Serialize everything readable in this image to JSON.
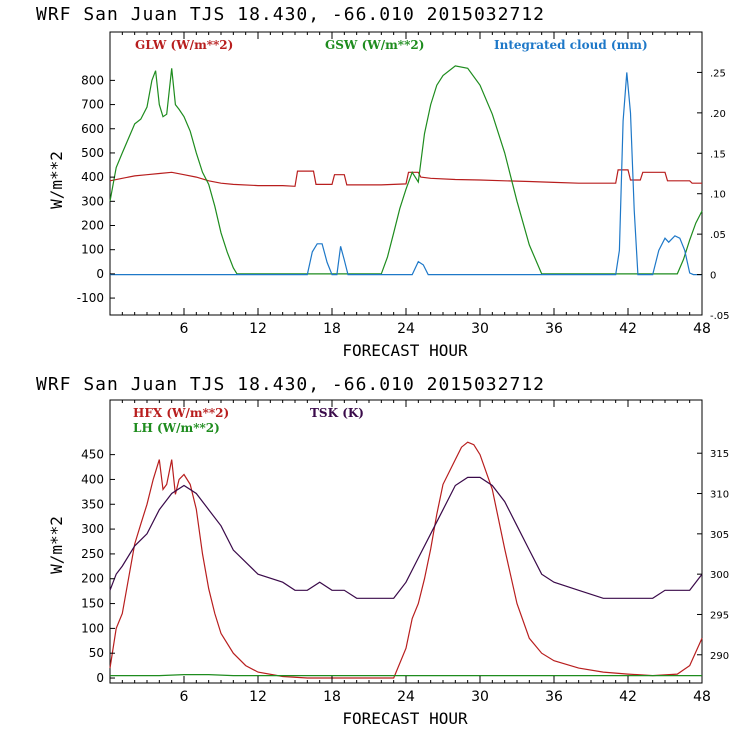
{
  "chart_data": [
    {
      "type": "line",
      "title": "WRF  San Juan TJS  18.430, -66.010  2015032712",
      "xlabel": "FORECAST HOUR",
      "ylabel": "W/m**2",
      "xlim": [
        0,
        48
      ],
      "ylim": [
        -170,
        1000
      ],
      "y2lim": [
        -0.05,
        0.3
      ],
      "x_ticks": [
        6,
        12,
        18,
        24,
        30,
        36,
        42,
        48
      ],
      "y_ticks": [
        -100,
        0,
        100,
        200,
        300,
        400,
        500,
        600,
        700,
        800
      ],
      "y2_ticks": [
        -0.05,
        0,
        0.05,
        0.1,
        0.15,
        0.2,
        0.25
      ],
      "y2_tick_labels": [
        "-.05",
        "0",
        ".05",
        ".10",
        ".15",
        ".20",
        ".25"
      ],
      "series": [
        {
          "name": "GLW (W/m**2)",
          "color": "#b81e1e",
          "axis": "left",
          "x": [
            0,
            1,
            2,
            3,
            4,
            5,
            6,
            7,
            8,
            9,
            10,
            12,
            14,
            15,
            15.2,
            16.5,
            16.7,
            18,
            18.2,
            19,
            19.2,
            20,
            22,
            24,
            24.2,
            25,
            25.2,
            26,
            28,
            30,
            32,
            34,
            36,
            38,
            40,
            41,
            41.2,
            42,
            42.2,
            43,
            43.2,
            45,
            45.2,
            47,
            47.2,
            48
          ],
          "y": [
            385,
            395,
            405,
            410,
            415,
            420,
            410,
            400,
            385,
            375,
            370,
            365,
            365,
            362,
            425,
            425,
            370,
            370,
            410,
            410,
            368,
            368,
            368,
            372,
            420,
            420,
            400,
            395,
            390,
            388,
            385,
            382,
            378,
            375,
            375,
            375,
            430,
            430,
            388,
            388,
            420,
            420,
            385,
            385,
            375,
            375
          ]
        },
        {
          "name": "GSW (W/m**2)",
          "color": "#1e8c1e",
          "axis": "left",
          "x": [
            0,
            0.5,
            1,
            1.5,
            2,
            2.5,
            3,
            3.4,
            3.7,
            4,
            4.3,
            4.6,
            5,
            5.3,
            5.6,
            6,
            6.5,
            7,
            7.5,
            8,
            8.5,
            9,
            9.5,
            10,
            10.3,
            11,
            22,
            22.5,
            23,
            23.5,
            24,
            24.5,
            25,
            25.5,
            26,
            26.5,
            27,
            28,
            29,
            30,
            31,
            32,
            33,
            34,
            35,
            36,
            46,
            46.5,
            47,
            47.5,
            48
          ],
          "y": [
            300,
            440,
            500,
            560,
            620,
            640,
            690,
            800,
            840,
            700,
            650,
            660,
            850,
            700,
            680,
            650,
            590,
            500,
            420,
            370,
            280,
            170,
            90,
            25,
            0,
            0,
            0,
            70,
            170,
            270,
            350,
            420,
            380,
            580,
            700,
            780,
            820,
            860,
            850,
            780,
            660,
            500,
            300,
            120,
            0,
            0,
            0,
            60,
            140,
            210,
            260
          ]
        },
        {
          "name": "Integrated cloud (mm)",
          "color": "#1e78c8",
          "axis": "right",
          "x": [
            0,
            16,
            16.4,
            16.8,
            17.2,
            17.6,
            18,
            18.4,
            18.7,
            19,
            19.3,
            20,
            24.5,
            25,
            25.4,
            25.8,
            26,
            41,
            41.3,
            41.6,
            41.9,
            42.2,
            42.5,
            42.8,
            43,
            44,
            44.5,
            45,
            45.3,
            45.8,
            46.2,
            46.6,
            47,
            47.3,
            48
          ],
          "y": [
            0,
            0,
            0.028,
            0.038,
            0.038,
            0.015,
            0,
            0,
            0.035,
            0.018,
            0,
            0,
            0,
            0.016,
            0.012,
            0,
            0,
            0,
            0.03,
            0.19,
            0.25,
            0.2,
            0.08,
            0,
            0,
            0,
            0.03,
            0.045,
            0.04,
            0.048,
            0.045,
            0.03,
            0.002,
            0,
            0
          ]
        }
      ],
      "legend": [
        "GLW (W/m**2)",
        "GSW (W/m**2)",
        "Integrated cloud (mm)"
      ]
    },
    {
      "type": "line",
      "title": "WRF  San Juan TJS  18.430, -66.010  2015032712",
      "xlabel": "FORECAST HOUR",
      "ylabel": "W/m**2",
      "xlim": [
        0,
        48
      ],
      "ylim": [
        -10,
        560
      ],
      "y2lim": [
        286.5,
        321.6
      ],
      "x_ticks": [
        6,
        12,
        18,
        24,
        30,
        36,
        42,
        48
      ],
      "y_ticks": [
        0,
        50,
        100,
        150,
        200,
        250,
        300,
        350,
        400,
        450
      ],
      "y2_ticks": [
        290,
        295,
        300,
        305,
        310,
        315
      ],
      "series": [
        {
          "name": "HFX (W/m**2)",
          "color": "#b81e1e",
          "axis": "left",
          "x": [
            0,
            0.5,
            1,
            1.5,
            2,
            2.5,
            3,
            3.5,
            4,
            4.3,
            4.6,
            5,
            5.3,
            5.6,
            6,
            6.5,
            7,
            7.5,
            8,
            8.5,
            9,
            10,
            11,
            12,
            14,
            16,
            18,
            20,
            22,
            23,
            24,
            24.5,
            25,
            25.5,
            26,
            26.5,
            27,
            28,
            28.5,
            29,
            29.5,
            30,
            31,
            32,
            33,
            34,
            35,
            36,
            38,
            40,
            42,
            44,
            46,
            47,
            48
          ],
          "y": [
            20,
            100,
            130,
            200,
            270,
            310,
            350,
            400,
            440,
            380,
            390,
            440,
            370,
            400,
            410,
            390,
            340,
            250,
            180,
            130,
            90,
            50,
            25,
            12,
            3,
            0,
            0,
            0,
            0,
            0,
            60,
            120,
            150,
            200,
            260,
            330,
            390,
            440,
            465,
            475,
            470,
            450,
            380,
            260,
            150,
            80,
            50,
            35,
            20,
            12,
            8,
            5,
            8,
            25,
            80
          ]
        },
        {
          "name": "LH (W/m**2)",
          "color": "#1e8c1e",
          "axis": "left",
          "x": [
            0,
            4,
            6,
            8,
            10,
            12,
            24,
            30,
            36,
            42,
            46,
            48
          ],
          "y": [
            5,
            5,
            7,
            7,
            5,
            5,
            5,
            5,
            5,
            5,
            5,
            5
          ]
        },
        {
          "name": "TSK (K)",
          "color": "#3a0a4a",
          "axis": "right",
          "x": [
            0,
            0.5,
            1,
            2,
            3,
            4,
            5,
            6,
            7,
            8,
            9,
            10,
            12,
            14,
            15,
            16,
            17,
            18,
            19,
            20,
            21,
            22,
            23,
            24,
            25,
            26,
            27,
            28,
            29,
            30,
            31,
            32,
            33,
            34,
            35,
            36,
            38,
            40,
            42,
            44,
            45,
            46,
            47,
            48
          ],
          "y": [
            298,
            300,
            301,
            303.5,
            305,
            308,
            310,
            311,
            310,
            308,
            306,
            303,
            300,
            299,
            298,
            298,
            299,
            298,
            298,
            297,
            297,
            297,
            297,
            299,
            302,
            305,
            308,
            311,
            312,
            312,
            311,
            309,
            306,
            303,
            300,
            299,
            298,
            297,
            297,
            297,
            298,
            298,
            298,
            300
          ]
        }
      ],
      "legend": [
        "HFX (W/m**2)",
        "LH (W/m**2)",
        "TSK (K)"
      ]
    }
  ]
}
